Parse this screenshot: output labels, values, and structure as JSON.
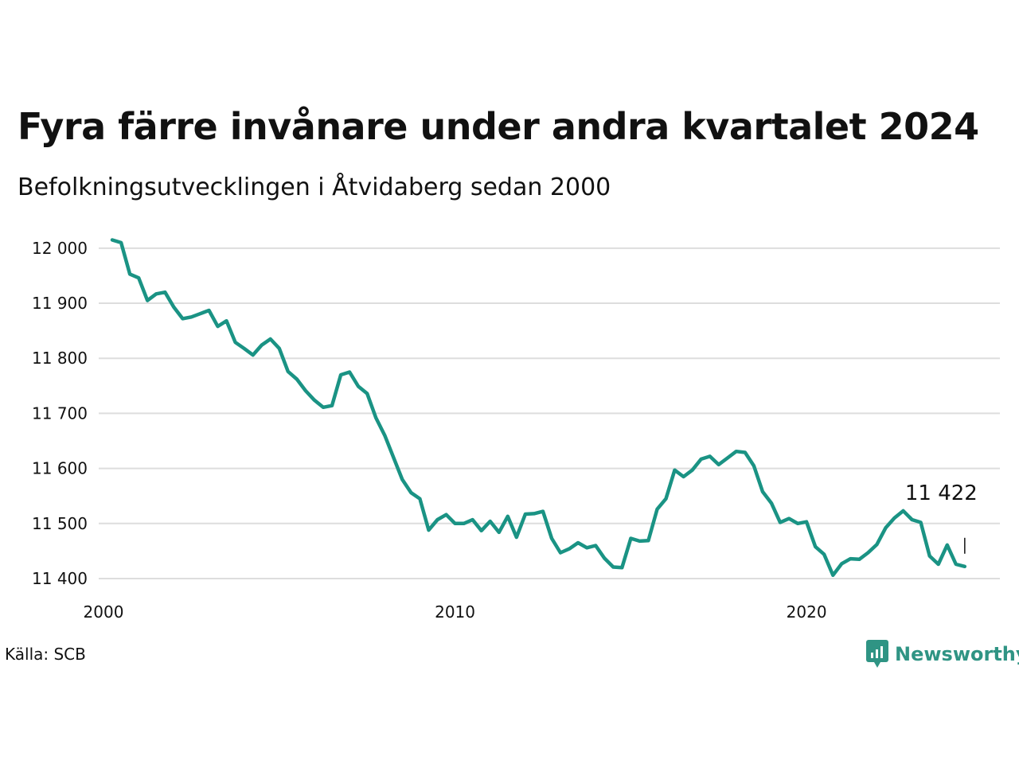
{
  "title": "Fyra färre invånare under andra kvartalet 2024",
  "subtitle": "Befolkningsutvecklingen i Åtvidaberg sedan 2000",
  "source": "Källa: SCB",
  "brand": "Newsworthy",
  "colors": {
    "line": "#1a9384",
    "grid": "#dddddd",
    "brand": "#2f9484"
  },
  "chart_data": {
    "type": "line",
    "title": "Fyra färre invånare under andra kvartalet 2024",
    "subtitle": "Befolkningsutvecklingen i Åtvidaberg sedan 2000",
    "xlabel": "",
    "ylabel": "",
    "xlim": [
      2000,
      2025.5
    ],
    "ylim": [
      11400,
      12020
    ],
    "x_ticks": [
      2000,
      2010,
      2020
    ],
    "x_tick_labels": [
      "2000",
      "2010",
      "2020"
    ],
    "y_ticks": [
      11400,
      11500,
      11600,
      11700,
      11800,
      11900,
      12000
    ],
    "y_tick_labels": [
      "11 400",
      "11 500",
      "11 600",
      "11 700",
      "11 800",
      "11 900",
      "12 000"
    ],
    "grid": true,
    "legend": "none",
    "last_value_label": "11 422",
    "series": [
      {
        "x": [
          2000.25,
          2000.5,
          2000.75,
          2001.0,
          2001.25,
          2001.5,
          2001.75,
          2002.0,
          2002.25,
          2002.5,
          2002.75,
          2003.0,
          2003.25,
          2003.5,
          2003.75,
          2004.0,
          2004.25,
          2004.5,
          2004.75,
          2005.0,
          2005.25,
          2005.5,
          2005.75,
          2006.0,
          2006.25,
          2006.5,
          2006.75,
          2007.0,
          2007.25,
          2007.5,
          2007.75,
          2008.0,
          2008.25,
          2008.5,
          2008.75,
          2009.0,
          2009.25,
          2009.5,
          2009.75,
          2010.0,
          2010.25,
          2010.5,
          2010.75,
          2011.0,
          2011.25,
          2011.5,
          2011.75,
          2012.0,
          2012.25,
          2012.5,
          2012.75,
          2013.0,
          2013.25,
          2013.5,
          2013.75,
          2014.0,
          2014.25,
          2014.5,
          2014.75,
          2015.0,
          2015.25,
          2015.5,
          2015.75,
          2016.0,
          2016.25,
          2016.5,
          2016.75,
          2017.0,
          2017.25,
          2017.5,
          2017.75,
          2018.0,
          2018.25,
          2018.5,
          2018.75,
          2019.0,
          2019.25,
          2019.5,
          2019.75,
          2020.0,
          2020.25,
          2020.5,
          2020.75,
          2021.0,
          2021.25,
          2021.5,
          2021.75,
          2022.0,
          2022.25,
          2022.5,
          2022.75,
          2023.0,
          2023.25,
          2023.5,
          2023.75,
          2024.0,
          2024.25,
          2024.5
        ],
        "values": [
          12015,
          12010,
          11953,
          11946,
          11905,
          11917,
          11920,
          11893,
          11872,
          11875,
          11881,
          11887,
          11858,
          11868,
          11829,
          11818,
          11806,
          11824,
          11835,
          11818,
          11776,
          11762,
          11741,
          11724,
          11711,
          11714,
          11770,
          11775,
          11749,
          11736,
          11692,
          11660,
          11620,
          11580,
          11556,
          11545,
          11488,
          11507,
          11516,
          11500,
          11500,
          11507,
          11487,
          11504,
          11484,
          11513,
          11475,
          11517,
          11518,
          11522,
          11473,
          11447,
          11454,
          11465,
          11456,
          11460,
          11437,
          11421,
          11420,
          11473,
          11468,
          11469,
          11526,
          11545,
          11597,
          11585,
          11597,
          11617,
          11622,
          11607,
          11619,
          11631,
          11629,
          11605,
          11558,
          11537,
          11502,
          11509,
          11500,
          11503,
          11458,
          11444,
          11406,
          11427,
          11436,
          11435,
          11447,
          11462,
          11492,
          11510,
          11523,
          11507,
          11502,
          11441,
          11426,
          11461,
          11426,
          11422
        ]
      }
    ]
  }
}
